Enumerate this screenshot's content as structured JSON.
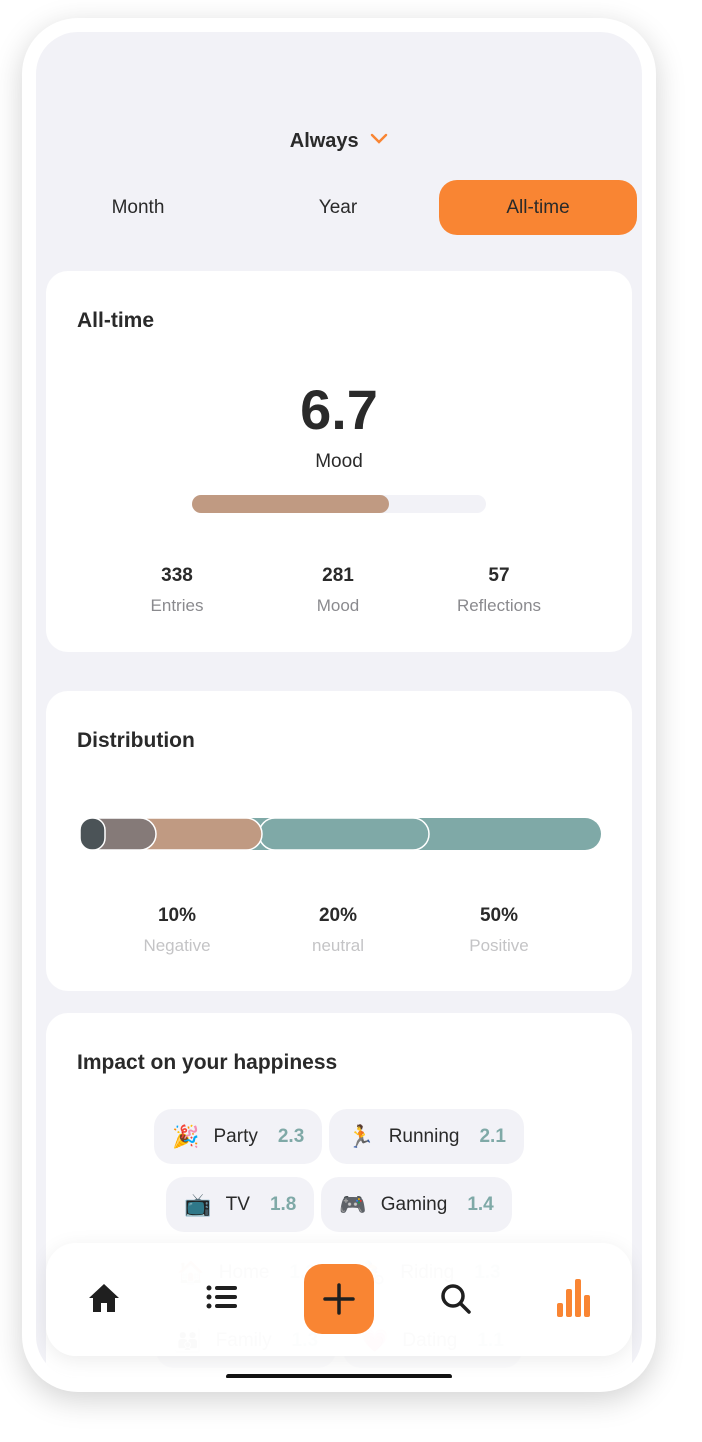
{
  "header": {
    "period": "Always",
    "tabs": [
      "Month",
      "Year",
      "All-time"
    ]
  },
  "summary": {
    "title": "All-time",
    "score": 6.7,
    "score_label": "Mood",
    "stats": [
      {
        "value": 338,
        "label": "Entries"
      },
      {
        "value": 281,
        "label": "Mood"
      },
      {
        "value": 57,
        "label": "Reflections"
      }
    ]
  },
  "distribution": {
    "title": "Distribution",
    "stats": [
      {
        "value": "10%",
        "label": "Negative"
      },
      {
        "value": "20%",
        "label": "neutral"
      },
      {
        "value": "50%",
        "label": "Positive"
      }
    ]
  },
  "impact": {
    "title": "Impact on your happiness",
    "rows": [
      [
        {
          "icon": "🎉",
          "name": "Party",
          "value": 2.3
        },
        {
          "icon": "🏃",
          "name": "Running",
          "value": 2.1
        }
      ],
      [
        {
          "icon": "📺",
          "name": "TV",
          "value": 1.8
        },
        {
          "icon": "🎮",
          "name": "Gaming",
          "value": 1.4
        }
      ],
      [
        {
          "icon": "🏠",
          "name": "Home",
          "value": 1.3
        },
        {
          "icon": "🚴",
          "name": "Riding",
          "value": 1.3
        }
      ],
      [
        {
          "icon": "👪",
          "name": "Family",
          "value": 1.3
        },
        {
          "icon": "💗",
          "name": "Dating",
          "value": 1.1
        }
      ]
    ]
  }
}
